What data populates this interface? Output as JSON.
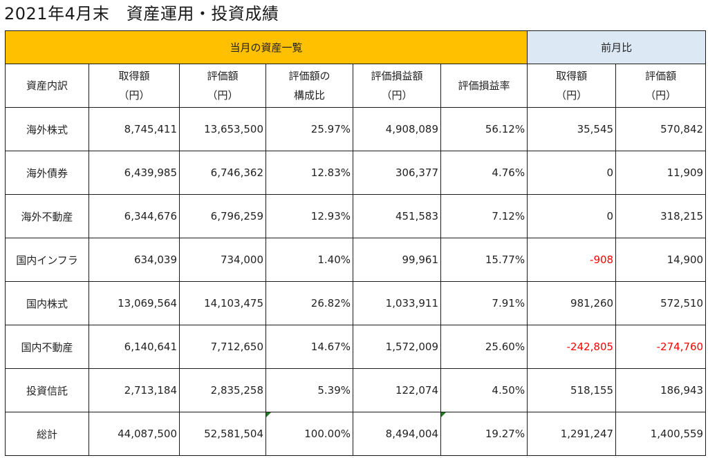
{
  "title": "2021年4月末　資産運用・投資成績",
  "groups": {
    "current": "当月の資産一覧",
    "prev": "前月比"
  },
  "headers": [
    [
      "資産内訳"
    ],
    [
      "取得額",
      "（円）"
    ],
    [
      "評価額",
      "（円）"
    ],
    [
      "評価額の",
      "構成比"
    ],
    [
      "評価損益額",
      "（円）"
    ],
    [
      "評価損益率"
    ],
    [
      "取得額",
      "（円）"
    ],
    [
      "評価額",
      "（円）"
    ]
  ],
  "rows": [
    {
      "label": "海外株式",
      "acq": "8,745,411",
      "val": "13,653,500",
      "ratio": "25.97%",
      "gain": "4,908,089",
      "rate": "56.12%",
      "d_acq": "35,545",
      "d_val": "570,842"
    },
    {
      "label": "海外債券",
      "acq": "6,439,985",
      "val": "6,746,362",
      "ratio": "12.83%",
      "gain": "306,377",
      "rate": "4.76%",
      "d_acq": "0",
      "d_val": "11,909"
    },
    {
      "label": "海外不動産",
      "acq": "6,344,676",
      "val": "6,796,259",
      "ratio": "12.93%",
      "gain": "451,583",
      "rate": "7.12%",
      "d_acq": "0",
      "d_val": "318,215"
    },
    {
      "label": "国内インフラ",
      "acq": "634,039",
      "val": "734,000",
      "ratio": "1.40%",
      "gain": "99,961",
      "rate": "15.77%",
      "d_acq": "-908",
      "d_val": "14,900"
    },
    {
      "label": "国内株式",
      "acq": "13,069,564",
      "val": "14,103,475",
      "ratio": "26.82%",
      "gain": "1,033,911",
      "rate": "7.91%",
      "d_acq": "981,260",
      "d_val": "572,510"
    },
    {
      "label": "国内不動産",
      "acq": "6,140,641",
      "val": "7,712,650",
      "ratio": "14.67%",
      "gain": "1,572,009",
      "rate": "25.60%",
      "d_acq": "-242,805",
      "d_val": "-274,760"
    },
    {
      "label": "投資信託",
      "acq": "2,713,184",
      "val": "2,835,258",
      "ratio": "5.39%",
      "gain": "122,074",
      "rate": "4.50%",
      "d_acq": "518,155",
      "d_val": "186,943"
    },
    {
      "label": "総計",
      "acq": "44,087,500",
      "val": "52,581,504",
      "ratio": "100.00%",
      "gain": "8,494,004",
      "rate": "19.27%",
      "d_acq": "1,291,247",
      "d_val": "1,400,559"
    }
  ],
  "colors": {
    "current_header": "#ffc000",
    "prev_header": "#dde8f5",
    "negative": "#ff0000",
    "cell_flag": "#1e7b1e"
  }
}
